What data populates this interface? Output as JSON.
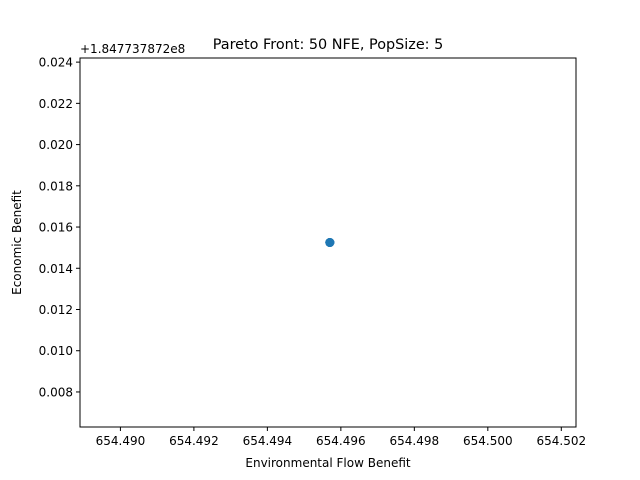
{
  "chart_data": {
    "type": "scatter",
    "title": "Pareto Front: 50 NFE, PopSize: 5",
    "xlabel": "Environmental Flow Benefit",
    "ylabel": "Economic Benefit",
    "offset_text": "+1.847737872e8",
    "xlim": [
      654.4889,
      654.5024
    ],
    "ylim": [
      0.0063,
      0.0242
    ],
    "x_ticks": [
      654.49,
      654.492,
      654.494,
      654.496,
      654.498,
      654.5,
      654.502
    ],
    "x_tick_labels": [
      "654.490",
      "654.492",
      "654.494",
      "654.496",
      "654.498",
      "654.500",
      "654.502"
    ],
    "y_ticks": [
      0.008,
      0.01,
      0.012,
      0.014,
      0.016,
      0.018,
      0.02,
      0.022,
      0.024
    ],
    "y_tick_labels": [
      "0.008",
      "0.010",
      "0.012",
      "0.014",
      "0.016",
      "0.018",
      "0.020",
      "0.022",
      "0.024"
    ],
    "series": [
      {
        "color": "#1f77b4",
        "points": [
          {
            "x": 654.4957,
            "y": 0.01525
          },
          {
            "x": 654.4957,
            "y": 0.01525
          },
          {
            "x": 654.4957,
            "y": 0.01525
          },
          {
            "x": 654.4957,
            "y": 0.01525
          },
          {
            "x": 654.4957,
            "y": 0.01525
          }
        ]
      }
    ],
    "grid": false
  }
}
